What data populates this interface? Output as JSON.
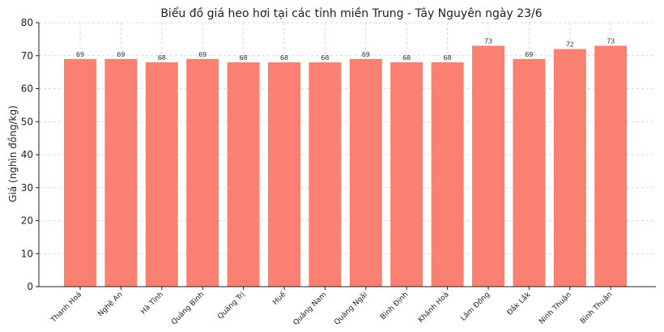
{
  "chart_data": {
    "type": "bar",
    "title": "Biểu đồ giá heo hơi tại các tỉnh miền Trung - Tây Nguyên ngày 23/6",
    "xlabel": "",
    "ylabel": "Giá (nghìn đồng/kg)",
    "ylim": [
      0,
      80
    ],
    "yticks": [
      0,
      10,
      20,
      30,
      40,
      50,
      60,
      70,
      80
    ],
    "grid": true,
    "bar_color": "#fa8072",
    "categories": [
      "Thanh Hoá",
      "Nghệ An",
      "Hà Tĩnh",
      "Quảng Bình",
      "Quảng Trị",
      "Huế",
      "Quảng Nam",
      "Quảng Ngãi",
      "Bình Định",
      "Khánh Hoà",
      "Lâm Đồng",
      "Đắk Lắk",
      "Ninh Thuận",
      "Bình Thuận"
    ],
    "values": [
      69,
      69,
      68,
      69,
      68,
      68,
      68,
      69,
      68,
      68,
      73,
      69,
      72,
      73
    ]
  }
}
